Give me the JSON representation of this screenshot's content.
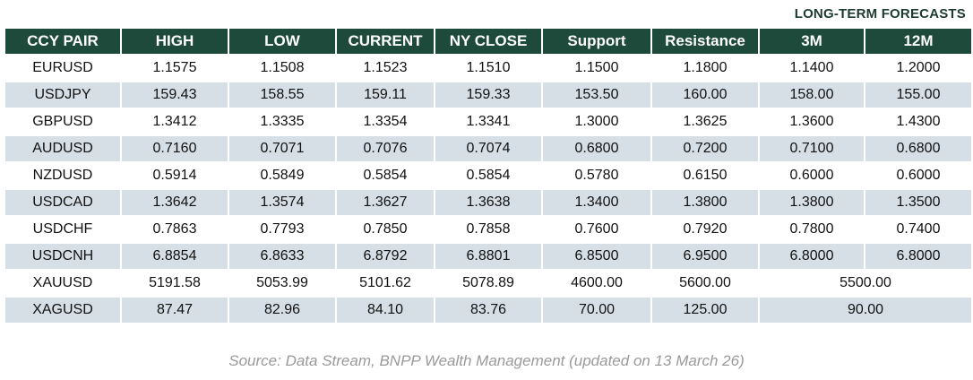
{
  "header": {
    "title": "LONG-TERM FORECASTS"
  },
  "table": {
    "columns": [
      "CCY PAIR",
      "HIGH",
      "LOW",
      "CURRENT",
      "NY CLOSE",
      "Support",
      "Resistance",
      "3M",
      "12M"
    ],
    "rows": [
      [
        "EURUSD",
        "1.1575",
        "1.1508",
        "1.1523",
        "1.1510",
        "1.1500",
        "1.1800",
        "1.1400",
        "1.2000"
      ],
      [
        "USDJPY",
        "159.43",
        "158.55",
        "159.11",
        "159.33",
        "153.50",
        "160.00",
        "158.00",
        "155.00"
      ],
      [
        "GBPUSD",
        "1.3412",
        "1.3335",
        "1.3354",
        "1.3341",
        "1.3000",
        "1.3625",
        "1.3600",
        "1.4300"
      ],
      [
        "AUDUSD",
        "0.7160",
        "0.7071",
        "0.7076",
        "0.7074",
        "0.6800",
        "0.7200",
        "0.7100",
        "0.6800"
      ],
      [
        "NZDUSD",
        "0.5914",
        "0.5849",
        "0.5854",
        "0.5854",
        "0.5780",
        "0.6150",
        "0.6000",
        "0.6000"
      ],
      [
        "USDCAD",
        "1.3642",
        "1.3574",
        "1.3627",
        "1.3638",
        "1.3400",
        "1.3800",
        "1.3800",
        "1.3500"
      ],
      [
        "USDCHF",
        "0.7863",
        "0.7793",
        "0.7850",
        "0.7858",
        "0.7600",
        "0.7920",
        "0.7800",
        "0.7400"
      ],
      [
        "USDCNH",
        "6.8854",
        "6.8633",
        "6.8792",
        "6.8801",
        "6.8500",
        "6.9500",
        "6.8000",
        "6.8000"
      ],
      [
        "XAUUSD",
        "5191.58",
        "5053.99",
        "5101.62",
        "5078.89",
        "4600.00",
        "5600.00",
        "5500.00"
      ],
      [
        "XAGUSD",
        "87.47",
        "82.96",
        "84.10",
        "83.76",
        "70.00",
        "125.00",
        "90.00"
      ]
    ]
  },
  "footer": {
    "source": "Source: Data Stream, BNPP Wealth Management (updated on 13 March 26)"
  }
}
